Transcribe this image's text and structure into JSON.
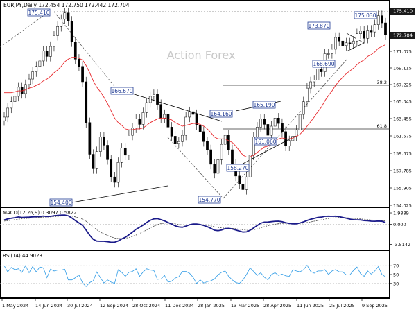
{
  "chart_data": {
    "type": "candlestick",
    "header": "EURJPY,Daily  172.454 172.750 172.442 172.704",
    "watermark": "Action Forex",
    "x_ticks": [
      "1 May 2024",
      "14 Jun 2024",
      "30 Jul 2024",
      "12 Sep 2024",
      "28 Oct 2024",
      "11 Dec 2024",
      "28 Jan 2025",
      "13 Mar 2025",
      "28 Apr 2025",
      "11 Jun 2025",
      "25 Jul 2025",
      "9 Sep 2025"
    ],
    "price_panel": {
      "y_ticks": [
        "173.265",
        "171.075",
        "169.115",
        "167.225",
        "165.345",
        "163.455",
        "161.575",
        "159.675",
        "157.785",
        "155.905",
        "154.025"
      ],
      "y_range": [
        153.8,
        176.3
      ],
      "price_tags": [
        {
          "text": "175.410",
          "value": 175.41,
          "style": "dark"
        },
        {
          "text": "172.704",
          "value": 172.704,
          "style": "dark"
        }
      ],
      "fib_levels": [
        {
          "label": "38.2",
          "value": 167.6
        },
        {
          "label": "61.8",
          "value": 162.2
        }
      ],
      "swing_labels": [
        {
          "text": "175.410",
          "date_index": 0.3,
          "value": 175.41
        },
        {
          "text": "166.670",
          "date_index": 0.7,
          "value": 166.67
        },
        {
          "text": "154.400",
          "date_index": 0.15,
          "value": 154.4
        },
        {
          "text": "164.160",
          "date_index": 0.5,
          "value": 164.16
        },
        {
          "text": "165.190",
          "date_index": 0.6,
          "value": 165.19
        },
        {
          "text": "154.770",
          "date_index": 0.55,
          "value": 154.77
        },
        {
          "text": "158.270",
          "date_index": 0.58,
          "value": 158.27
        },
        {
          "text": "161.060",
          "date_index": 0.65,
          "value": 161.06
        },
        {
          "text": "173.870",
          "date_index": 0.78,
          "value": 173.87
        },
        {
          "text": "168.690",
          "date_index": 0.8,
          "value": 168.69
        },
        {
          "text": "175.030",
          "date_index": 0.95,
          "value": 175.03
        }
      ],
      "close_series": [
        163.6,
        164.6,
        165.3,
        165.9,
        166.9,
        166.2,
        167.2,
        167.8,
        168.6,
        169.2,
        169.8,
        170.9,
        170.3,
        171.4,
        172.6,
        173.6,
        174.4,
        175.1,
        174.2,
        171.9,
        170.0,
        169.2,
        167.5,
        163.0,
        159.5,
        157.9,
        159.8,
        161.4,
        160.5,
        158.9,
        157.0,
        156.4,
        158.6,
        160.2,
        159.4,
        161.6,
        162.4,
        163.4,
        162.8,
        164.1,
        165.2,
        165.9,
        166.1,
        165.0,
        163.5,
        163.9,
        162.5,
        161.5,
        160.7,
        160.9,
        161.6,
        163.6,
        164.2,
        163.9,
        162.7,
        162.0,
        160.9,
        160.0,
        158.4,
        157.4,
        158.9,
        160.6,
        161.6,
        160.0,
        158.4,
        157.1,
        156.2,
        155.6,
        157.0,
        159.4,
        161.4,
        162.5,
        163.4,
        162.8,
        161.6,
        162.6,
        163.5,
        162.9,
        162.0,
        160.4,
        161.0,
        161.5,
        162.2,
        163.9,
        165.3,
        166.8,
        167.5,
        167.7,
        168.9,
        168.6,
        170.6,
        170.6,
        171.1,
        172.4,
        172.0,
        171.5,
        171.8,
        171.7,
        172.0,
        172.8,
        173.1,
        172.3,
        173.2,
        173.0,
        173.8,
        174.8,
        174.0,
        172.7
      ],
      "ma_series": [
        166.3,
        166.3,
        166.3,
        166.4,
        166.5,
        166.5,
        166.6,
        166.8,
        166.9,
        167.1,
        167.3,
        167.6,
        167.8,
        168.1,
        168.5,
        168.8,
        169.2,
        169.7,
        170.0,
        170.2,
        170.2,
        170.1,
        169.9,
        169.3,
        168.5,
        167.6,
        166.9,
        166.4,
        165.8,
        165.1,
        164.3,
        163.5,
        163.0,
        162.7,
        162.3,
        162.2,
        162.2,
        162.3,
        162.3,
        162.4,
        162.7,
        163.0,
        163.2,
        163.4,
        163.5,
        163.5,
        163.4,
        163.3,
        163.0,
        162.8,
        162.6,
        162.7,
        162.8,
        162.9,
        162.9,
        162.8,
        162.6,
        162.3,
        161.9,
        161.4,
        161.2,
        161.2,
        161.2,
        161.0,
        160.8,
        160.4,
        159.9,
        159.4,
        159.2,
        159.2,
        159.4,
        159.7,
        160.0,
        160.3,
        160.4,
        160.7,
        161.0,
        161.2,
        161.3,
        161.2,
        161.2,
        161.3,
        161.5,
        161.7,
        162.1,
        162.6,
        163.1,
        163.6,
        164.2,
        164.7,
        165.4,
        166.0,
        166.5,
        167.1,
        167.6,
        168.0,
        168.4,
        168.7,
        169.0,
        169.4,
        169.7,
        169.9,
        170.3,
        170.5,
        170.8,
        171.2,
        171.4,
        171.6
      ]
    },
    "macd_panel": {
      "label": "MACD(12,26,9) 0.3097 0.5822",
      "y_ticks": [
        "1.9889",
        "0.000",
        "-3.5142"
      ],
      "y_range": [
        -4.2,
        2.6
      ],
      "macd_series": [
        0.74,
        0.92,
        1.05,
        1.14,
        1.28,
        1.19,
        1.21,
        1.24,
        1.29,
        1.32,
        1.35,
        1.44,
        1.35,
        1.39,
        1.48,
        1.55,
        1.59,
        1.62,
        1.47,
        1.09,
        0.63,
        0.23,
        -0.22,
        -1.02,
        -1.93,
        -2.65,
        -2.95,
        -2.98,
        -2.99,
        -3.06,
        -3.16,
        -3.16,
        -2.92,
        -2.57,
        -2.28,
        -1.85,
        -1.39,
        -0.88,
        -0.54,
        -0.15,
        0.3,
        0.68,
        0.94,
        0.98,
        0.79,
        0.58,
        0.31,
        0.02,
        -0.29,
        -0.47,
        -0.53,
        -0.34,
        -0.11,
        0.03,
        0.03,
        -0.06,
        -0.23,
        -0.44,
        -0.72,
        -1.04,
        -1.13,
        -1.01,
        -0.78,
        -0.73,
        -0.84,
        -1.02,
        -1.2,
        -1.37,
        -1.34,
        -1.06,
        -0.64,
        -0.23,
        0.18,
        0.37,
        0.38,
        0.45,
        0.52,
        0.53,
        0.44,
        0.26,
        0.15,
        0.08,
        0.08,
        0.22,
        0.42,
        0.66,
        0.87,
        1.02,
        1.18,
        1.24,
        1.38,
        1.41,
        1.39,
        1.41,
        1.33,
        1.19,
        1.05,
        0.9,
        0.79,
        0.77,
        0.75,
        0.64,
        0.61,
        0.53,
        0.52,
        0.56,
        0.51,
        0.31
      ],
      "signal_series": [
        0.55,
        0.62,
        0.71,
        0.79,
        0.89,
        0.95,
        1.0,
        1.05,
        1.1,
        1.14,
        1.18,
        1.24,
        1.26,
        1.28,
        1.32,
        1.37,
        1.42,
        1.46,
        1.47,
        1.41,
        1.28,
        1.11,
        0.87,
        0.52,
        0.04,
        -0.49,
        -0.98,
        -1.38,
        -1.7,
        -1.97,
        -2.21,
        -2.4,
        -2.5,
        -2.51,
        -2.45,
        -2.33,
        -2.14,
        -1.89,
        -1.62,
        -1.32,
        -1.0,
        -0.66,
        -0.34,
        -0.08,
        0.1,
        0.19,
        0.21,
        0.17,
        0.08,
        -0.03,
        -0.14,
        -0.18,
        -0.16,
        -0.12,
        -0.09,
        -0.08,
        -0.11,
        -0.18,
        -0.29,
        -0.44,
        -0.57,
        -0.66,
        -0.69,
        -0.7,
        -0.73,
        -0.79,
        -0.87,
        -0.97,
        -1.05,
        -1.05,
        -0.97,
        -0.83,
        -0.63,
        -0.43,
        -0.27,
        -0.13,
        -0.0,
        0.1,
        0.15,
        0.17,
        0.17,
        0.15,
        0.14,
        0.15,
        0.2,
        0.29,
        0.4,
        0.53,
        0.66,
        0.77,
        0.9,
        1.0,
        1.08,
        1.14,
        1.17,
        1.17,
        1.14,
        1.09,
        1.03,
        0.98,
        0.93,
        0.87,
        0.82,
        0.76,
        0.72,
        0.68,
        0.65,
        0.58
      ]
    },
    "rsi_panel": {
      "label": "RSI(14) 44.9023",
      "y_ticks": [
        "70",
        "50",
        "30"
      ],
      "y_range": [
        0,
        100
      ],
      "rsi_series": [
        70,
        56,
        66,
        61,
        63,
        55,
        70,
        54,
        68,
        56,
        67,
        65,
        43,
        62,
        58,
        60,
        60,
        62,
        38,
        38,
        43,
        49,
        31,
        23,
        32,
        36,
        56,
        43,
        31,
        38,
        33,
        30,
        61,
        55,
        46,
        55,
        57,
        63,
        46,
        56,
        63,
        60,
        59,
        39,
        40,
        48,
        33,
        35,
        42,
        45,
        57,
        57,
        53,
        44,
        30,
        38,
        31,
        34,
        36,
        40,
        49,
        55,
        58,
        46,
        38,
        32,
        30,
        38,
        50,
        65,
        57,
        48,
        54,
        44,
        38,
        50,
        54,
        48,
        51,
        47,
        46,
        61,
        58,
        56,
        61,
        71,
        57,
        53,
        58,
        58,
        61,
        50,
        58,
        61,
        56,
        56,
        49,
        49,
        59,
        67,
        52,
        46,
        58,
        51,
        58,
        68,
        50,
        45
      ]
    }
  }
}
